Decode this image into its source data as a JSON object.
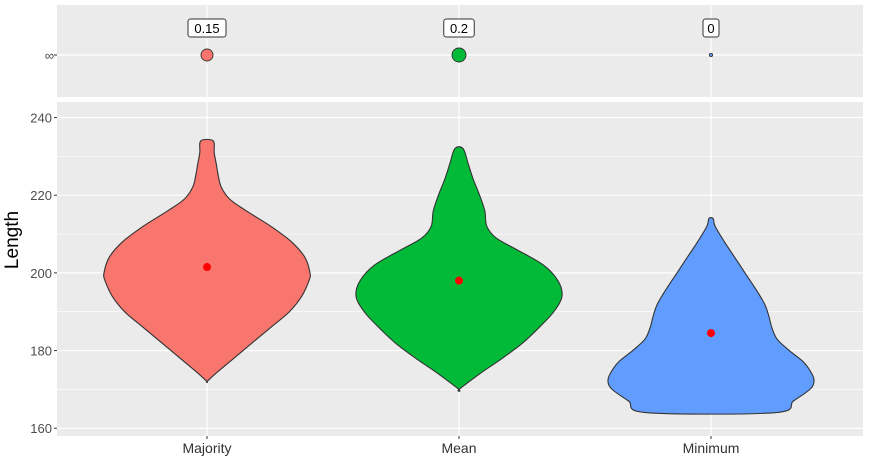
{
  "chart_data": {
    "type": "violin",
    "categories": [
      "Majority",
      "Mean",
      "Minimum"
    ],
    "colors": [
      "#F8766D",
      "#00BA38",
      "#619CFF"
    ],
    "ylabel": "Length",
    "ylim": [
      158,
      244
    ],
    "yticks": [
      160,
      180,
      200,
      220,
      240
    ],
    "top_panel": {
      "tick_label": "∞",
      "values": [
        0.15,
        0.2,
        0
      ],
      "labels": [
        "0.15",
        "0.2",
        "0"
      ]
    },
    "violins": [
      {
        "min": 172,
        "max": 234,
        "mean": 201.5,
        "profile": [
          [
            172,
            0.0
          ],
          [
            174,
            0.08
          ],
          [
            178,
            0.26
          ],
          [
            182,
            0.44
          ],
          [
            186,
            0.62
          ],
          [
            190,
            0.8
          ],
          [
            194,
            0.92
          ],
          [
            198,
            0.99
          ],
          [
            200,
            1.0
          ],
          [
            204,
            0.95
          ],
          [
            208,
            0.82
          ],
          [
            212,
            0.62
          ],
          [
            216,
            0.38
          ],
          [
            219,
            0.22
          ],
          [
            222,
            0.14
          ],
          [
            225,
            0.11
          ],
          [
            228,
            0.09
          ],
          [
            231,
            0.07
          ],
          [
            234,
            0.06
          ]
        ]
      },
      {
        "min": 170,
        "max": 232,
        "mean": 198,
        "profile": [
          [
            170,
            0.0
          ],
          [
            174,
            0.2
          ],
          [
            178,
            0.42
          ],
          [
            182,
            0.62
          ],
          [
            186,
            0.78
          ],
          [
            190,
            0.92
          ],
          [
            194,
            1.0
          ],
          [
            198,
            0.96
          ],
          [
            202,
            0.82
          ],
          [
            206,
            0.56
          ],
          [
            209,
            0.36
          ],
          [
            212,
            0.27
          ],
          [
            216,
            0.25
          ],
          [
            220,
            0.2
          ],
          [
            224,
            0.14
          ],
          [
            228,
            0.09
          ],
          [
            232,
            0.04
          ]
        ]
      },
      {
        "min": 164,
        "max": 214,
        "mean": 184.5,
        "profile": [
          [
            164,
            0.62
          ],
          [
            167,
            0.8
          ],
          [
            170,
            0.96
          ],
          [
            172,
            1.0
          ],
          [
            174,
            0.98
          ],
          [
            177,
            0.9
          ],
          [
            180,
            0.76
          ],
          [
            183,
            0.64
          ],
          [
            186,
            0.59
          ],
          [
            189,
            0.56
          ],
          [
            192,
            0.52
          ],
          [
            196,
            0.43
          ],
          [
            200,
            0.33
          ],
          [
            204,
            0.23
          ],
          [
            208,
            0.13
          ],
          [
            212,
            0.04
          ],
          [
            214,
            0.02
          ]
        ]
      }
    ]
  }
}
